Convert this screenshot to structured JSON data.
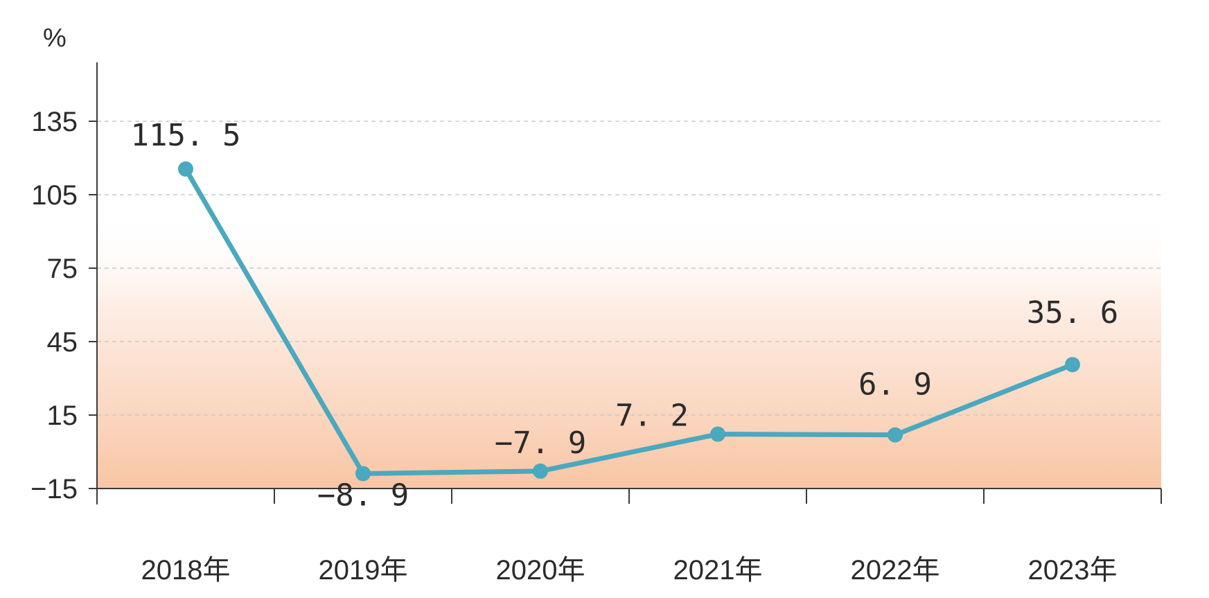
{
  "chart_data": {
    "type": "line",
    "ylabel": "%",
    "categories": [
      "2018年",
      "2019年",
      "2020年",
      "2021年",
      "2022年",
      "2023年"
    ],
    "values": [
      115.5,
      -8.9,
      -7.9,
      7.2,
      6.9,
      35.6
    ],
    "data_labels": [
      "115. 5",
      "−8. 9",
      "−7. 9",
      "7. 2",
      "6. 9",
      "35. 6"
    ],
    "yticks": [
      135,
      105,
      75,
      45,
      15,
      -15
    ],
    "ytick_labels": [
      "135",
      "105",
      "75",
      "45",
      "15",
      "−15"
    ],
    "ylim": [
      -15,
      160
    ],
    "grid": true,
    "colors": {
      "line": "#4aa8bf",
      "background_gradient_top": "#fde8dc",
      "background_gradient_bottom": "#f8c6a6",
      "grid": "#c8c8c8",
      "axis": "#3a3a3a"
    }
  }
}
